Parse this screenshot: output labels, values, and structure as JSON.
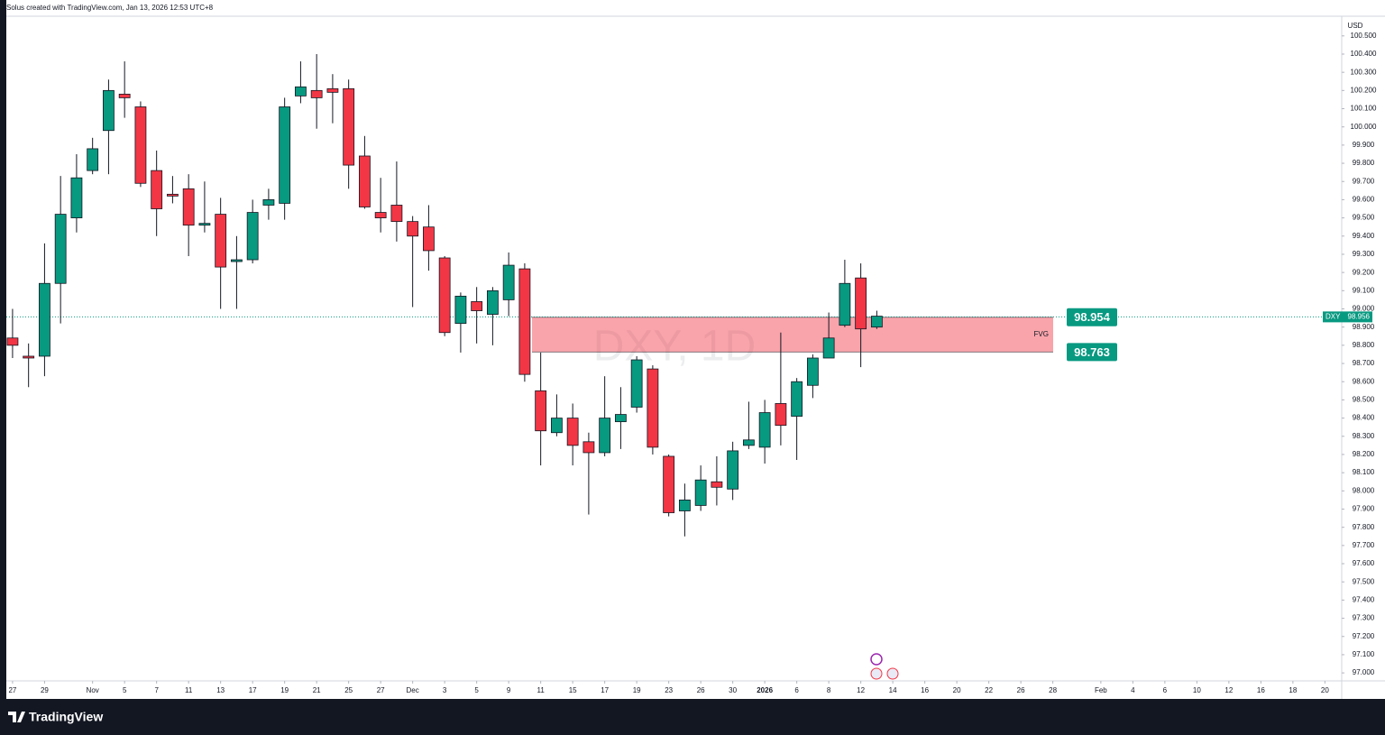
{
  "header": "Solus created with TradingView.com, Jan 13, 2026 12:53 UTC+8",
  "footer": {
    "brand": "TradingView"
  },
  "chart_data": {
    "type": "candlestick",
    "watermark": "DXY, 1D",
    "y_unit": "USD",
    "series": [
      {
        "name": "DXY",
        "up_color": "#089981",
        "down_color": "#f23645",
        "wick_color": "#131722",
        "open": [
          98.84,
          98.74,
          98.74,
          99.14,
          99.5,
          99.76,
          99.98,
          100.18,
          100.11,
          99.76,
          99.63,
          99.66,
          99.46,
          99.52,
          99.26,
          99.27,
          99.57,
          99.58,
          100.17,
          100.2,
          100.21,
          100.21,
          99.84,
          99.53,
          99.57,
          99.48,
          99.45,
          99.28,
          98.92,
          99.04,
          98.97,
          99.05,
          99.22,
          98.55,
          98.32,
          98.4,
          98.27,
          98.21,
          98.38,
          98.46,
          98.67,
          98.19,
          97.89,
          97.92,
          98.05,
          98.01,
          98.25,
          98.24,
          98.48,
          98.41,
          98.58,
          98.73,
          98.91,
          99.17,
          98.9
        ],
        "high": [
          99.0,
          98.81,
          99.36,
          99.73,
          99.85,
          99.94,
          100.26,
          100.36,
          100.14,
          99.87,
          99.73,
          99.74,
          99.7,
          99.61,
          99.4,
          99.6,
          99.66,
          100.16,
          100.36,
          100.4,
          100.29,
          100.26,
          99.95,
          99.72,
          99.81,
          99.51,
          99.57,
          99.29,
          99.09,
          99.12,
          99.12,
          99.31,
          99.25,
          98.76,
          98.53,
          98.48,
          98.32,
          98.63,
          98.57,
          98.74,
          98.69,
          98.2,
          98.04,
          98.14,
          98.19,
          98.27,
          98.49,
          98.5,
          98.87,
          98.62,
          98.75,
          98.98,
          99.27,
          99.25,
          98.99
        ],
        "low": [
          98.73,
          98.57,
          98.63,
          98.92,
          99.42,
          99.74,
          99.74,
          100.05,
          99.67,
          99.4,
          99.58,
          99.29,
          99.42,
          99.0,
          99.0,
          99.25,
          99.49,
          99.49,
          100.13,
          99.99,
          100.02,
          99.66,
          99.55,
          99.42,
          99.37,
          99.01,
          99.21,
          98.85,
          98.76,
          98.81,
          98.8,
          98.96,
          98.6,
          98.14,
          98.3,
          98.14,
          97.87,
          98.19,
          98.23,
          98.43,
          98.2,
          97.86,
          97.75,
          97.89,
          97.92,
          97.95,
          98.23,
          98.15,
          98.25,
          98.17,
          98.51,
          98.73,
          98.9,
          98.68,
          98.89
        ],
        "close": [
          98.8,
          98.73,
          99.14,
          99.52,
          99.72,
          99.88,
          100.2,
          100.16,
          99.69,
          99.55,
          99.62,
          99.46,
          99.47,
          99.23,
          99.27,
          99.53,
          99.6,
          100.11,
          100.22,
          100.16,
          100.19,
          99.79,
          99.56,
          99.5,
          99.48,
          99.4,
          99.32,
          98.87,
          99.07,
          98.99,
          99.1,
          99.24,
          98.64,
          98.33,
          98.4,
          98.25,
          98.21,
          98.4,
          98.42,
          98.72,
          98.24,
          97.88,
          97.95,
          98.06,
          98.02,
          98.22,
          98.28,
          98.43,
          98.36,
          98.6,
          98.73,
          98.84,
          99.14,
          98.89,
          98.96
        ]
      }
    ],
    "last_price": 98.956,
    "last_price_color": "#089981",
    "zones": [
      {
        "label": "FVG",
        "top": 98.954,
        "bottom": 98.763,
        "color": "#f23645",
        "label_color": "#089981"
      }
    ],
    "xlim": [
      -0.39,
      83.05
    ],
    "xticks": [
      {
        "value": 0,
        "label": "27"
      },
      {
        "value": 2,
        "label": "29"
      },
      {
        "value": 5,
        "label": "Nov"
      },
      {
        "value": 7,
        "label": "5"
      },
      {
        "value": 9,
        "label": "7"
      },
      {
        "value": 11,
        "label": "11"
      },
      {
        "value": 13,
        "label": "13"
      },
      {
        "value": 15,
        "label": "17"
      },
      {
        "value": 17,
        "label": "19"
      },
      {
        "value": 19,
        "label": "21"
      },
      {
        "value": 21,
        "label": "25"
      },
      {
        "value": 23,
        "label": "27"
      },
      {
        "value": 25,
        "label": "Dec"
      },
      {
        "value": 27,
        "label": "3"
      },
      {
        "value": 29,
        "label": "5"
      },
      {
        "value": 31,
        "label": "9"
      },
      {
        "value": 33,
        "label": "11"
      },
      {
        "value": 35,
        "label": "15"
      },
      {
        "value": 37,
        "label": "17"
      },
      {
        "value": 39,
        "label": "19"
      },
      {
        "value": 41,
        "label": "23"
      },
      {
        "value": 43,
        "label": "26"
      },
      {
        "value": 45,
        "label": "30"
      },
      {
        "value": 47,
        "label": "2026"
      },
      {
        "value": 49,
        "label": "6"
      },
      {
        "value": 51,
        "label": "8"
      },
      {
        "value": 53,
        "label": "12"
      },
      {
        "value": 55,
        "label": "14"
      },
      {
        "value": 57,
        "label": "16"
      },
      {
        "value": 59,
        "label": "20"
      },
      {
        "value": 61,
        "label": "22"
      },
      {
        "value": 63,
        "label": "26"
      },
      {
        "value": 65,
        "label": "28"
      },
      {
        "value": 68,
        "label": "Feb"
      },
      {
        "value": 70,
        "label": "4"
      },
      {
        "value": 72,
        "label": "6"
      },
      {
        "value": 74,
        "label": "10"
      },
      {
        "value": 76,
        "label": "12"
      },
      {
        "value": 78,
        "label": "16"
      },
      {
        "value": 80,
        "label": "18"
      },
      {
        "value": 82,
        "label": "20"
      }
    ],
    "ylim": [
      96.956,
      100.608
    ],
    "yticks": [
      {
        "value": 97.0,
        "label": "97.000"
      },
      {
        "value": 97.1,
        "label": "97.100"
      },
      {
        "value": 97.2,
        "label": "97.200"
      },
      {
        "value": 97.3,
        "label": "97.300"
      },
      {
        "value": 97.4,
        "label": "97.400"
      },
      {
        "value": 97.5,
        "label": "97.500"
      },
      {
        "value": 97.6,
        "label": "97.600"
      },
      {
        "value": 97.7,
        "label": "97.700"
      },
      {
        "value": 97.8,
        "label": "97.800"
      },
      {
        "value": 97.9,
        "label": "97.900"
      },
      {
        "value": 98.0,
        "label": "98.000"
      },
      {
        "value": 98.1,
        "label": "98.100"
      },
      {
        "value": 98.2,
        "label": "98.200"
      },
      {
        "value": 98.3,
        "label": "98.300"
      },
      {
        "value": 98.4,
        "label": "98.400"
      },
      {
        "value": 98.5,
        "label": "98.500"
      },
      {
        "value": 98.6,
        "label": "98.600"
      },
      {
        "value": 98.7,
        "label": "98.700"
      },
      {
        "value": 98.8,
        "label": "98.800"
      },
      {
        "value": 98.9,
        "label": "98.900"
      },
      {
        "value": 99.0,
        "label": "99.000"
      },
      {
        "value": 99.1,
        "label": "99.100"
      },
      {
        "value": 99.2,
        "label": "99.200"
      },
      {
        "value": 99.3,
        "label": "99.300"
      },
      {
        "value": 99.4,
        "label": "99.400"
      },
      {
        "value": 99.5,
        "label": "99.500"
      },
      {
        "value": 99.6,
        "label": "99.600"
      },
      {
        "value": 99.7,
        "label": "99.700"
      },
      {
        "value": 99.8,
        "label": "99.800"
      },
      {
        "value": 99.9,
        "label": "99.900"
      },
      {
        "value": 100.0,
        "label": "100.000"
      },
      {
        "value": 100.1,
        "label": "100.100"
      },
      {
        "value": 100.2,
        "label": "100.200"
      },
      {
        "value": 100.3,
        "label": "100.300"
      },
      {
        "value": 100.4,
        "label": "100.400"
      },
      {
        "value": 100.5,
        "label": "100.500"
      }
    ]
  }
}
